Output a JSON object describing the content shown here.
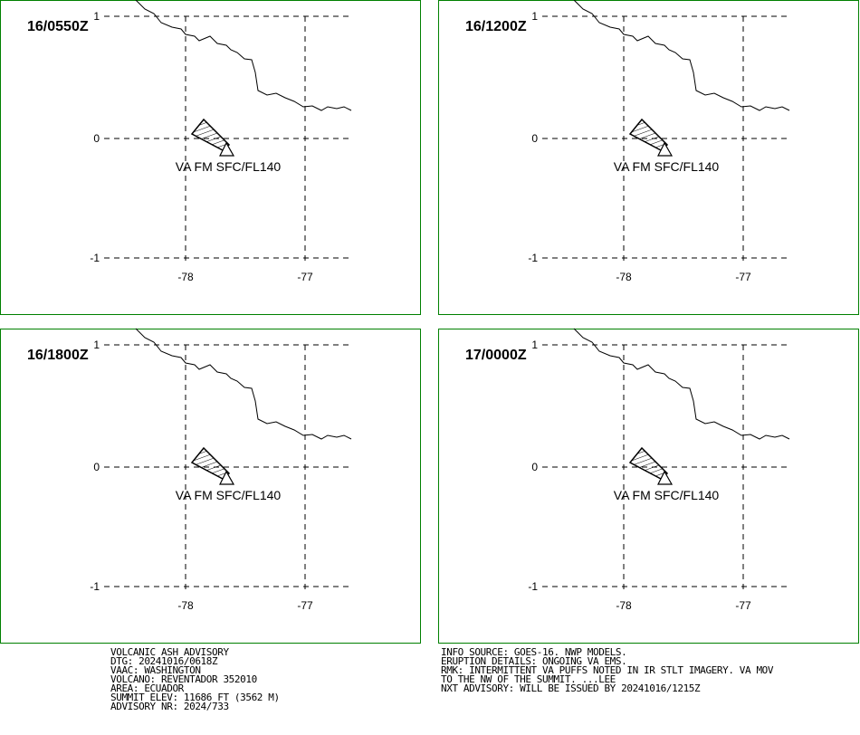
{
  "panels": [
    {
      "time": "16/0550Z",
      "va_label": "VA FM SFC/FL140",
      "lat_labels": [
        "1",
        "0",
        "-1"
      ],
      "lon_labels": [
        "-78",
        "-77"
      ]
    },
    {
      "time": "16/1200Z",
      "va_label": "VA FM SFC/FL140",
      "lat_labels": [
        "1",
        "0",
        "-1"
      ],
      "lon_labels": [
        "-78",
        "-77"
      ]
    },
    {
      "time": "16/1800Z",
      "va_label": "VA FM SFC/FL140",
      "lat_labels": [
        "1",
        "0",
        "-1"
      ],
      "lon_labels": [
        "-78",
        "-77"
      ]
    },
    {
      "time": "17/0000Z",
      "va_label": "VA FM SFC/FL140",
      "lat_labels": [
        "1",
        "0",
        "-1"
      ],
      "lon_labels": [
        "-78",
        "-77"
      ]
    }
  ],
  "footer_left": [
    "VOLCANIC ASH ADVISORY",
    "DTG: 20241016/0618Z",
    "VAAC: WASHINGTON",
    "VOLCANO: REVENTADOR 352010",
    "AREA: ECUADOR",
    "SUMMIT ELEV: 11686 FT (3562 M)",
    "ADVISORY NR: 2024/733"
  ],
  "footer_right": [
    "INFO SOURCE: GOES-16. NWP MODELS.",
    "ERUPTION DETAILS: ONGOING VA EMS.",
    "RMK: INTERMITTENT VA PUFFS NOTED IN IR STLT IMAGERY. VA MOV",
    "TO THE NW OF THE SUMMIT. ...LEE",
    "NXT ADVISORY: WILL BE ISSUED BY 20241016/1215Z"
  ]
}
